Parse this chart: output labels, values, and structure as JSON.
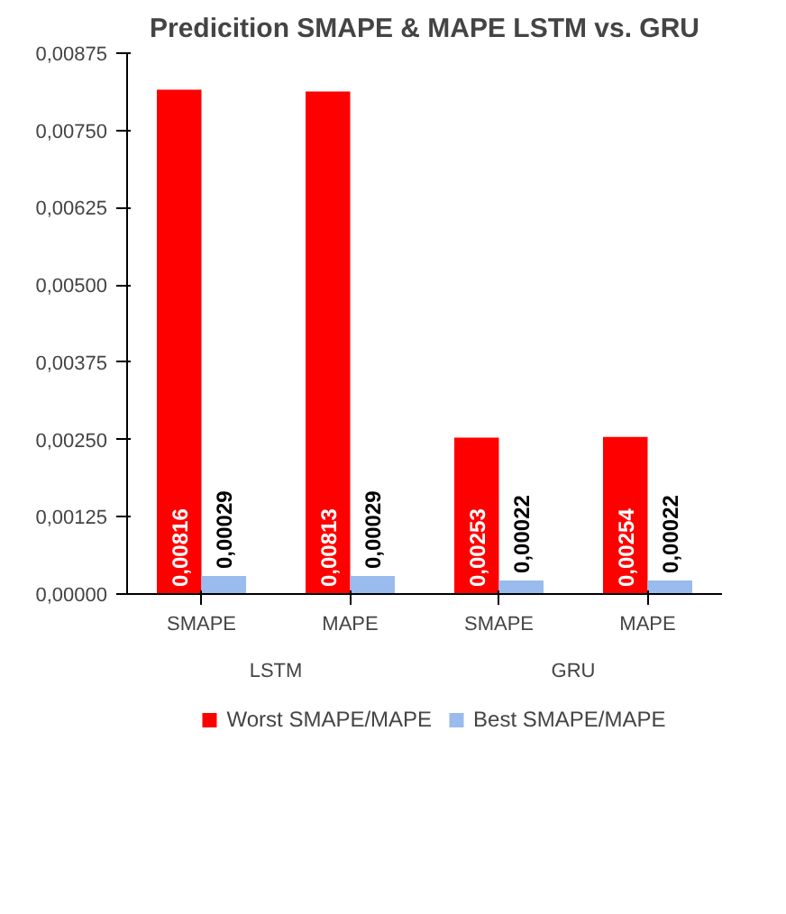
{
  "chart_data": {
    "type": "bar",
    "title": "Predicition SMAPE & MAPE LSTM vs. GRU",
    "categories": [
      "SMAPE",
      "MAPE",
      "SMAPE",
      "MAPE"
    ],
    "series": [
      {
        "name": "Worst SMAPE/MAPE",
        "color": "#ff0000",
        "values": [
          0.00816,
          0.00813,
          0.00253,
          0.00254
        ],
        "value_labels": [
          "0,00816",
          "0,00813",
          "0,00253",
          "0,00254"
        ]
      },
      {
        "name": "Best SMAPE/MAPE",
        "color": "#99bbee",
        "values": [
          0.00029,
          0.00029,
          0.00022,
          0.00022
        ],
        "value_labels": [
          "0,00029",
          "0,00029",
          "0,00022",
          "0,00022"
        ]
      }
    ],
    "annotations": [
      "LSTM",
      "GRU"
    ],
    "ylim": [
      0,
      0.00875
    ],
    "yticks": [
      {
        "value": 0,
        "label": "0,00000"
      },
      {
        "value": 0.00125,
        "label": "0,00125"
      },
      {
        "value": 0.0025,
        "label": "0,00250"
      },
      {
        "value": 0.00375,
        "label": "0,00375"
      },
      {
        "value": 0.005,
        "label": "0,00500"
      },
      {
        "value": 0.00625,
        "label": "0,00625"
      },
      {
        "value": 0.0075,
        "label": "0,00750"
      },
      {
        "value": 0.00875,
        "label": "0,00875"
      }
    ],
    "grid": false,
    "legend": "bottom"
  }
}
